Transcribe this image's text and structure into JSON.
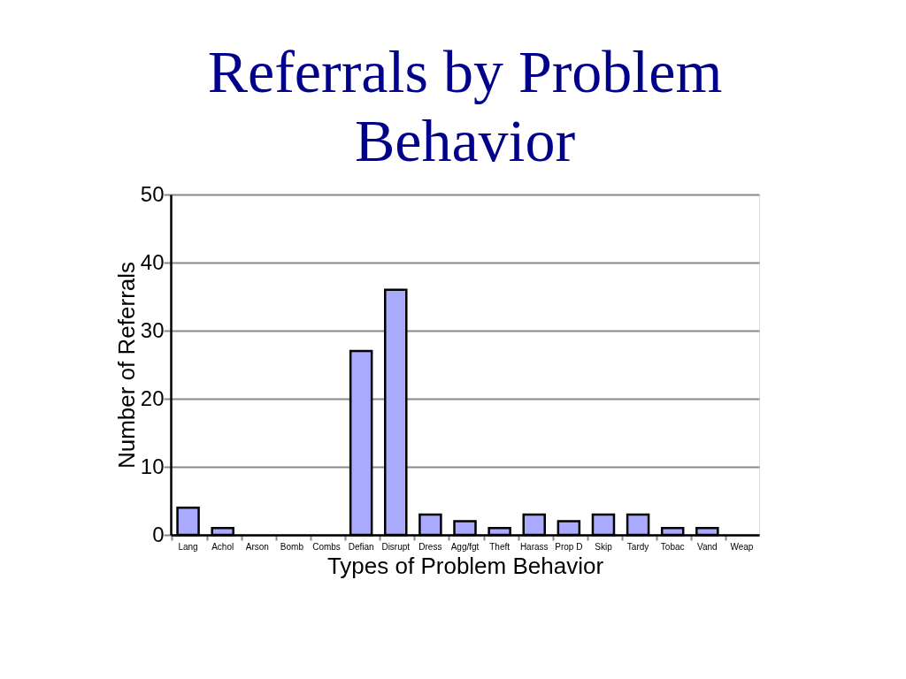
{
  "chart_data": {
    "type": "bar",
    "title": "Referrals by Problem Behavior",
    "xlabel": "Types of Problem Behavior",
    "ylabel": "Number of Referrals",
    "categories": [
      "Lang",
      "Achol",
      "Arson",
      "Bomb",
      "Combs",
      "Defian",
      "Disrupt",
      "Dress",
      "Agg/fgt",
      "Theft",
      "Harass",
      "Prop D",
      "Skip",
      "Tardy",
      "Tobac",
      "Vand",
      "Weap"
    ],
    "values": [
      4,
      1,
      0,
      0,
      0,
      27,
      36,
      3,
      2,
      1,
      3,
      2,
      3,
      3,
      1,
      1,
      0
    ],
    "color": "#aaaaff",
    "ylim": [
      0,
      50
    ],
    "yticks": [
      0,
      10,
      20,
      30,
      40,
      50
    ],
    "grid": "y"
  }
}
